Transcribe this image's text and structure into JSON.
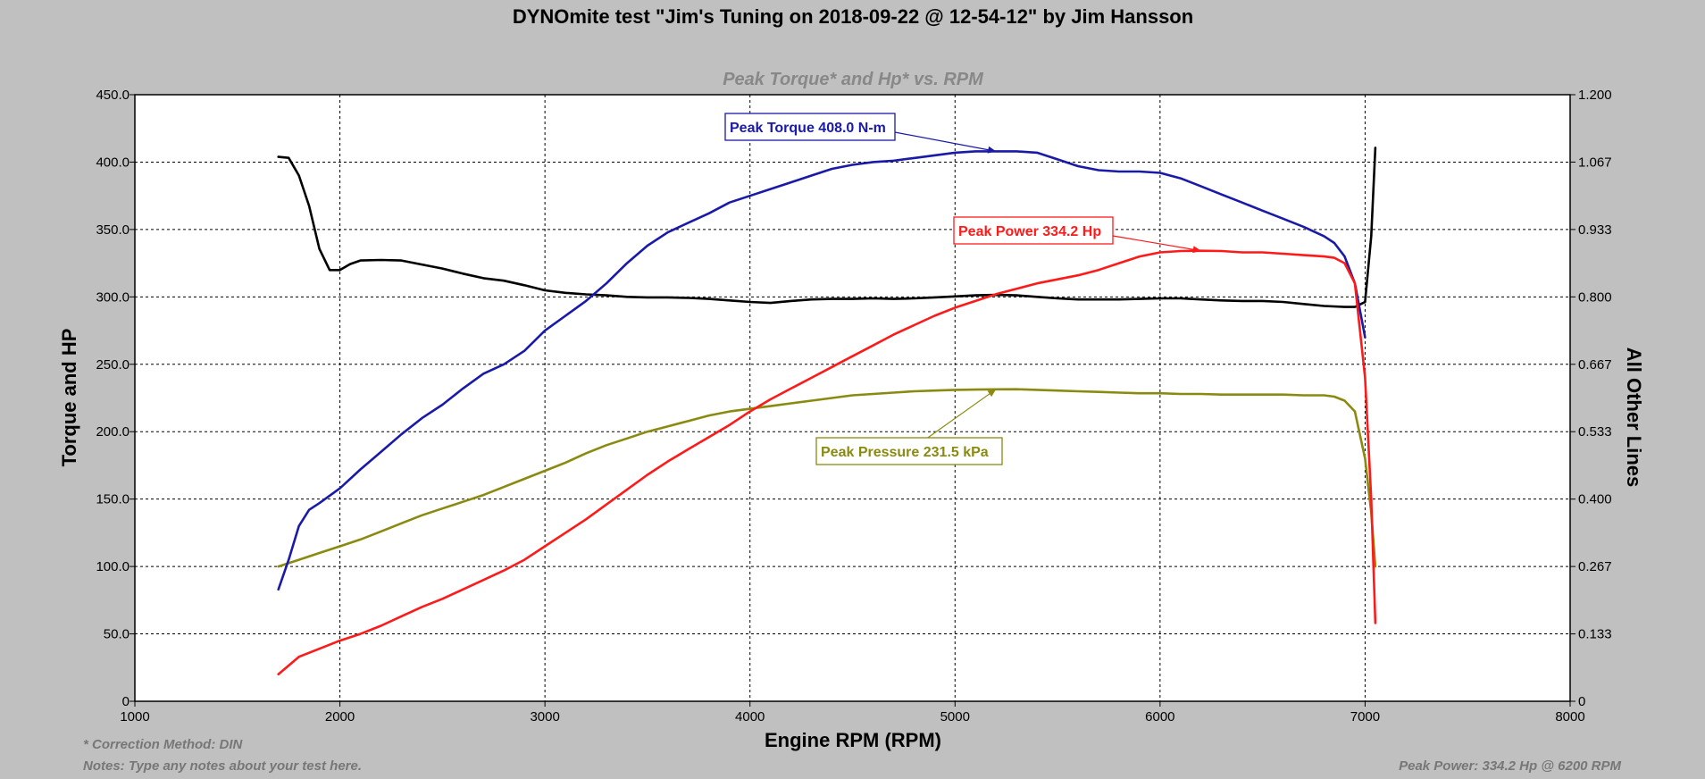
{
  "chart_data": {
    "type": "line",
    "title": "DYNOmite test \"Jim's Tuning on 2018-09-22 @ 12-54-12\" by Jim Hansson",
    "subtitle": "Peak Torque* and Hp* vs. RPM",
    "xlabel": "Engine RPM (RPM)",
    "ylabel": "Torque and HP",
    "y2label": "All Other Lines",
    "xlim": [
      1000,
      8000
    ],
    "ylim": [
      0,
      450
    ],
    "y2lim": [
      0,
      1.2
    ],
    "grid": true,
    "x_ticks": [
      "1000",
      "2000",
      "3000",
      "4000",
      "5000",
      "6000",
      "7000",
      "8000"
    ],
    "y_ticks": [
      "0",
      "50.0",
      "100.0",
      "150.0",
      "200.0",
      "250.0",
      "300.0",
      "350.0",
      "400.0",
      "450.0"
    ],
    "y2_ticks": [
      "0",
      "0.133",
      "0.267",
      "0.400",
      "0.533",
      "0.667",
      "0.800",
      "0.933",
      "1.067",
      "1.200"
    ],
    "colors": {
      "torque": "#1a1aa8",
      "power": "#ff1a1a",
      "pressure": "#8a8a10",
      "other": "#000000",
      "grid": "#000000"
    },
    "series": [
      {
        "key": "torque",
        "axis": "left",
        "x": [
          1700,
          1750,
          1800,
          1850,
          1900,
          2000,
          2100,
          2200,
          2300,
          2400,
          2500,
          2600,
          2700,
          2800,
          2900,
          3000,
          3100,
          3200,
          3300,
          3400,
          3500,
          3600,
          3700,
          3800,
          3900,
          4000,
          4100,
          4200,
          4300,
          4400,
          4500,
          4600,
          4700,
          4800,
          4900,
          5000,
          5100,
          5200,
          5300,
          5400,
          5500,
          5600,
          5700,
          5800,
          5900,
          6000,
          6100,
          6200,
          6300,
          6400,
          6500,
          6600,
          6700,
          6800,
          6850,
          6900,
          6950,
          7000
        ],
        "values": [
          83,
          105,
          130,
          142,
          147,
          158,
          172,
          185,
          198,
          210,
          220,
          232,
          243,
          250,
          260,
          275,
          286,
          297,
          310,
          325,
          338,
          348,
          355,
          362,
          370,
          375,
          380,
          385,
          390,
          395,
          398,
          400,
          401,
          403,
          405,
          407,
          408,
          408,
          408,
          407,
          402,
          397,
          394,
          393,
          393,
          392,
          388,
          382,
          376,
          370,
          364,
          358,
          352,
          345,
          340,
          330,
          310,
          270
        ]
      },
      {
        "key": "power",
        "axis": "left",
        "x": [
          1700,
          1800,
          1900,
          2000,
          2100,
          2200,
          2300,
          2400,
          2500,
          2600,
          2700,
          2800,
          2900,
          3000,
          3100,
          3200,
          3300,
          3400,
          3500,
          3600,
          3700,
          3800,
          3900,
          4000,
          4100,
          4200,
          4300,
          4400,
          4500,
          4600,
          4700,
          4800,
          4900,
          5000,
          5100,
          5200,
          5300,
          5400,
          5500,
          5600,
          5700,
          5800,
          5900,
          6000,
          6100,
          6200,
          6300,
          6400,
          6500,
          6600,
          6700,
          6800,
          6850,
          6900,
          6950,
          7000,
          7030,
          7050
        ],
        "values": [
          20,
          33,
          39,
          45,
          50,
          56,
          63,
          70,
          76,
          83,
          90,
          97,
          105,
          115,
          125,
          135,
          146,
          157,
          168,
          178,
          187,
          196,
          205,
          215,
          224,
          232,
          240,
          248,
          256,
          264,
          272,
          279,
          286,
          292,
          297,
          302,
          306,
          310,
          313,
          316,
          320,
          325,
          330,
          333,
          334,
          334.2,
          334,
          333,
          333,
          332,
          331,
          330,
          329,
          325,
          310,
          240,
          150,
          58
        ]
      },
      {
        "key": "pressure",
        "axis": "left",
        "x": [
          1700,
          1800,
          1900,
          2000,
          2100,
          2200,
          2300,
          2400,
          2500,
          2600,
          2700,
          2800,
          2900,
          3000,
          3100,
          3200,
          3300,
          3400,
          3500,
          3600,
          3700,
          3800,
          3900,
          4000,
          4100,
          4200,
          4300,
          4400,
          4500,
          4600,
          4700,
          4800,
          4900,
          5000,
          5100,
          5200,
          5300,
          5400,
          5500,
          5600,
          5700,
          5800,
          5900,
          6000,
          6100,
          6200,
          6300,
          6400,
          6500,
          6600,
          6700,
          6800,
          6850,
          6900,
          6950,
          7000,
          7030,
          7050
        ],
        "values": [
          100,
          105,
          110,
          115,
          120,
          126,
          132,
          138,
          143,
          148,
          153,
          159,
          165,
          171,
          177,
          184,
          190,
          195,
          200,
          204,
          208,
          212,
          215,
          217,
          219,
          221,
          223,
          225,
          227,
          228,
          229,
          230,
          230.5,
          231,
          231.2,
          231.4,
          231.5,
          231,
          230.5,
          230,
          229.5,
          229,
          228.5,
          228.5,
          228,
          228,
          227.5,
          227.5,
          227.5,
          227.5,
          227,
          227,
          226,
          223,
          215,
          180,
          140,
          100
        ]
      },
      {
        "key": "other",
        "axis": "right",
        "x": [
          1700,
          1750,
          1800,
          1850,
          1900,
          1950,
          2000,
          2050,
          2100,
          2200,
          2300,
          2400,
          2500,
          2600,
          2700,
          2800,
          2900,
          3000,
          3100,
          3200,
          3300,
          3400,
          3500,
          3600,
          3700,
          3800,
          3900,
          4000,
          4100,
          4200,
          4300,
          4400,
          4500,
          4600,
          4700,
          4800,
          4900,
          5000,
          5100,
          5200,
          5300,
          5400,
          5500,
          5600,
          5700,
          5800,
          5900,
          6000,
          6100,
          6200,
          6300,
          6400,
          6500,
          6600,
          6700,
          6800,
          6900,
          6950,
          7000,
          7030,
          7050
        ],
        "values": [
          1.077,
          1.075,
          1.04,
          0.98,
          0.895,
          0.853,
          0.853,
          0.865,
          0.872,
          0.873,
          0.872,
          0.864,
          0.856,
          0.846,
          0.837,
          0.832,
          0.823,
          0.813,
          0.808,
          0.805,
          0.803,
          0.8,
          0.799,
          0.799,
          0.798,
          0.796,
          0.793,
          0.79,
          0.788,
          0.792,
          0.795,
          0.796,
          0.796,
          0.797,
          0.796,
          0.797,
          0.799,
          0.801,
          0.803,
          0.804,
          0.803,
          0.8,
          0.797,
          0.795,
          0.795,
          0.795,
          0.796,
          0.797,
          0.797,
          0.795,
          0.793,
          0.792,
          0.792,
          0.79,
          0.786,
          0.782,
          0.78,
          0.78,
          0.79,
          0.92,
          1.095
        ]
      }
    ],
    "annotations": [
      {
        "key": "torque",
        "text": "Peak Torque 408.0 N-m",
        "x": 5200,
        "y": 408,
        "axis": "left"
      },
      {
        "key": "power",
        "text": "Peak Power 334.2 Hp",
        "x": 6200,
        "y": 334.2,
        "axis": "left"
      },
      {
        "key": "pressure",
        "text": "Peak Pressure 231.5 kPa",
        "x": 5200,
        "y": 231.5,
        "axis": "left"
      }
    ],
    "footnotes": {
      "correction": "* Correction Method: DIN",
      "notes": "Notes: Type any notes about your test here.",
      "peak": "Peak Power: 334.2 Hp @ 6200 RPM"
    }
  }
}
